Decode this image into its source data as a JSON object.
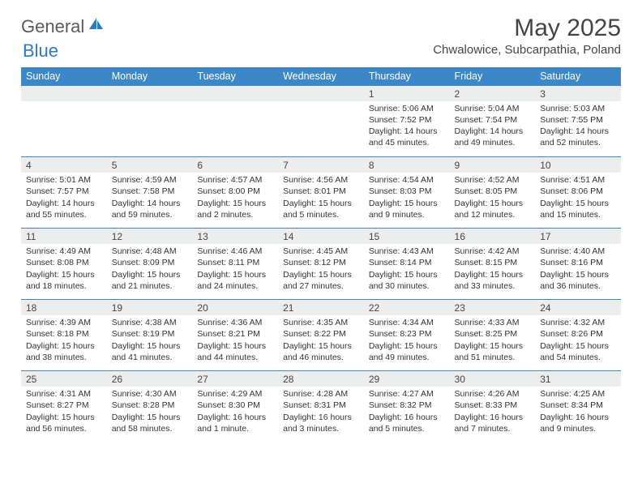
{
  "brand": {
    "name_part1": "General",
    "name_part2": "Blue",
    "text_color": "#5a5a5a",
    "accent_color": "#2b7bbf"
  },
  "title": "May 2025",
  "location": "Chwalowice, Subcarpathia, Poland",
  "theme": {
    "header_bg": "#3b87c8",
    "header_text": "#ffffff",
    "daynum_bg": "#eceded",
    "border_color": "#3b87c8",
    "body_text": "#333333"
  },
  "weekdays": [
    "Sunday",
    "Monday",
    "Tuesday",
    "Wednesday",
    "Thursday",
    "Friday",
    "Saturday"
  ],
  "weeks": [
    [
      null,
      null,
      null,
      null,
      {
        "n": "1",
        "sunrise": "5:06 AM",
        "sunset": "7:52 PM",
        "daylight": "14 hours and 45 minutes."
      },
      {
        "n": "2",
        "sunrise": "5:04 AM",
        "sunset": "7:54 PM",
        "daylight": "14 hours and 49 minutes."
      },
      {
        "n": "3",
        "sunrise": "5:03 AM",
        "sunset": "7:55 PM",
        "daylight": "14 hours and 52 minutes."
      }
    ],
    [
      {
        "n": "4",
        "sunrise": "5:01 AM",
        "sunset": "7:57 PM",
        "daylight": "14 hours and 55 minutes."
      },
      {
        "n": "5",
        "sunrise": "4:59 AM",
        "sunset": "7:58 PM",
        "daylight": "14 hours and 59 minutes."
      },
      {
        "n": "6",
        "sunrise": "4:57 AM",
        "sunset": "8:00 PM",
        "daylight": "15 hours and 2 minutes."
      },
      {
        "n": "7",
        "sunrise": "4:56 AM",
        "sunset": "8:01 PM",
        "daylight": "15 hours and 5 minutes."
      },
      {
        "n": "8",
        "sunrise": "4:54 AM",
        "sunset": "8:03 PM",
        "daylight": "15 hours and 9 minutes."
      },
      {
        "n": "9",
        "sunrise": "4:52 AM",
        "sunset": "8:05 PM",
        "daylight": "15 hours and 12 minutes."
      },
      {
        "n": "10",
        "sunrise": "4:51 AM",
        "sunset": "8:06 PM",
        "daylight": "15 hours and 15 minutes."
      }
    ],
    [
      {
        "n": "11",
        "sunrise": "4:49 AM",
        "sunset": "8:08 PM",
        "daylight": "15 hours and 18 minutes."
      },
      {
        "n": "12",
        "sunrise": "4:48 AM",
        "sunset": "8:09 PM",
        "daylight": "15 hours and 21 minutes."
      },
      {
        "n": "13",
        "sunrise": "4:46 AM",
        "sunset": "8:11 PM",
        "daylight": "15 hours and 24 minutes."
      },
      {
        "n": "14",
        "sunrise": "4:45 AM",
        "sunset": "8:12 PM",
        "daylight": "15 hours and 27 minutes."
      },
      {
        "n": "15",
        "sunrise": "4:43 AM",
        "sunset": "8:14 PM",
        "daylight": "15 hours and 30 minutes."
      },
      {
        "n": "16",
        "sunrise": "4:42 AM",
        "sunset": "8:15 PM",
        "daylight": "15 hours and 33 minutes."
      },
      {
        "n": "17",
        "sunrise": "4:40 AM",
        "sunset": "8:16 PM",
        "daylight": "15 hours and 36 minutes."
      }
    ],
    [
      {
        "n": "18",
        "sunrise": "4:39 AM",
        "sunset": "8:18 PM",
        "daylight": "15 hours and 38 minutes."
      },
      {
        "n": "19",
        "sunrise": "4:38 AM",
        "sunset": "8:19 PM",
        "daylight": "15 hours and 41 minutes."
      },
      {
        "n": "20",
        "sunrise": "4:36 AM",
        "sunset": "8:21 PM",
        "daylight": "15 hours and 44 minutes."
      },
      {
        "n": "21",
        "sunrise": "4:35 AM",
        "sunset": "8:22 PM",
        "daylight": "15 hours and 46 minutes."
      },
      {
        "n": "22",
        "sunrise": "4:34 AM",
        "sunset": "8:23 PM",
        "daylight": "15 hours and 49 minutes."
      },
      {
        "n": "23",
        "sunrise": "4:33 AM",
        "sunset": "8:25 PM",
        "daylight": "15 hours and 51 minutes."
      },
      {
        "n": "24",
        "sunrise": "4:32 AM",
        "sunset": "8:26 PM",
        "daylight": "15 hours and 54 minutes."
      }
    ],
    [
      {
        "n": "25",
        "sunrise": "4:31 AM",
        "sunset": "8:27 PM",
        "daylight": "15 hours and 56 minutes."
      },
      {
        "n": "26",
        "sunrise": "4:30 AM",
        "sunset": "8:28 PM",
        "daylight": "15 hours and 58 minutes."
      },
      {
        "n": "27",
        "sunrise": "4:29 AM",
        "sunset": "8:30 PM",
        "daylight": "16 hours and 1 minute."
      },
      {
        "n": "28",
        "sunrise": "4:28 AM",
        "sunset": "8:31 PM",
        "daylight": "16 hours and 3 minutes."
      },
      {
        "n": "29",
        "sunrise": "4:27 AM",
        "sunset": "8:32 PM",
        "daylight": "16 hours and 5 minutes."
      },
      {
        "n": "30",
        "sunrise": "4:26 AM",
        "sunset": "8:33 PM",
        "daylight": "16 hours and 7 minutes."
      },
      {
        "n": "31",
        "sunrise": "4:25 AM",
        "sunset": "8:34 PM",
        "daylight": "16 hours and 9 minutes."
      }
    ]
  ],
  "labels": {
    "sunrise_prefix": "Sunrise: ",
    "sunset_prefix": "Sunset: ",
    "daylight_prefix": "Daylight: "
  }
}
